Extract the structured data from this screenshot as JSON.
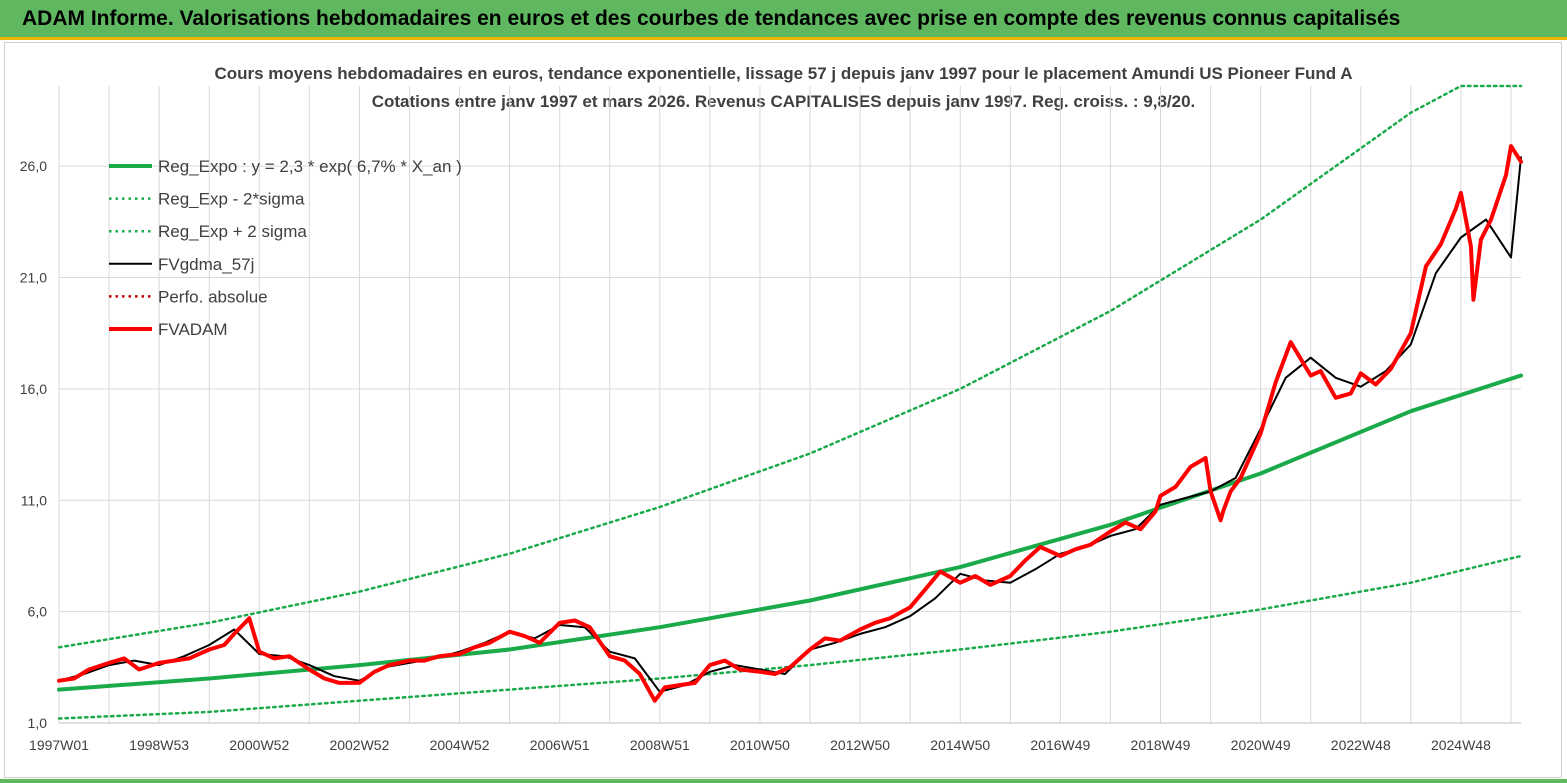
{
  "header": {
    "title": "ADAM Informe. Valorisations hebdomadaires en euros et des courbes de tendances avec prise en compte des revenus connus capitalisés"
  },
  "colors": {
    "header_bg": "#5fb860",
    "header_border": "#e8b400",
    "trend": "#1aaa4a",
    "fvadam": "#ff0000",
    "fvgdma": "#000000",
    "perfo": "#c00000",
    "grid": "#d9d9d9",
    "axis_text": "#404040"
  },
  "chart_data": {
    "type": "line",
    "title": "Cours moyens hebdomadaires en euros, tendance exponentielle, lissage 57 j depuis janv 1997  pour le placement Amundi US Pioneer Fund A",
    "subtitle": "Cotations entre janv 1997 et mars 2026. Revenus  CAPITALISES  depuis janv 1997. Reg. croiss. : 9,8/20.",
    "xlabel": "",
    "ylabel": "",
    "x_range": [
      "1997-01",
      "2026-03"
    ],
    "ylim": [
      1.0,
      29.6
    ],
    "y_ticks": [
      "1,0",
      "6,0",
      "11,0",
      "16,0",
      "21,0",
      "26,0"
    ],
    "y_tick_values": [
      1,
      6,
      11,
      16,
      21,
      26
    ],
    "x_tick_labels": [
      "1997W01",
      "1998W53",
      "2000W52",
      "2002W52",
      "2004W52",
      "2006W51",
      "2008W51",
      "2010W50",
      "2012W50",
      "2014W50",
      "2016W49",
      "2018W49",
      "2020W49",
      "2022W48",
      "2024W48"
    ],
    "x_tick_years": [
      1997.0,
      1999.0,
      2001.0,
      2003.0,
      2005.0,
      2007.0,
      2009.0,
      2011.0,
      2013.0,
      2015.0,
      2017.0,
      2019.0,
      2021.0,
      2023.0,
      2025.0
    ],
    "grid": true,
    "legend_position": "top-left",
    "legend": [
      "Reg_Expo : y = 2,3 * exp( 6,7% *  X_an )",
      "Reg_Exp - 2*sigma",
      "Reg_Exp + 2 sigma",
      "FVgdma_57j",
      "Perfo. absolue",
      "FVADAM"
    ],
    "series": [
      {
        "name": "Reg_Expo : y = 2,3 * exp( 6,7% *  X_an )",
        "style": "solid-thick",
        "color": "#1aaa4a",
        "x": [
          1997.0,
          2000.0,
          2003.0,
          2006.0,
          2009.0,
          2012.0,
          2015.0,
          2018.0,
          2021.0,
          2024.0,
          2026.2
        ],
        "y": [
          2.5,
          3.0,
          3.6,
          4.3,
          5.3,
          6.5,
          8.0,
          9.9,
          12.2,
          15.0,
          16.6
        ]
      },
      {
        "name": "Reg_Exp - 2*sigma",
        "style": "dotted",
        "color": "#1aaa4a",
        "x": [
          1997.0,
          2000.0,
          2003.0,
          2006.0,
          2009.0,
          2012.0,
          2015.0,
          2018.0,
          2021.0,
          2024.0,
          2026.2
        ],
        "y": [
          1.2,
          1.5,
          2.0,
          2.5,
          3.0,
          3.6,
          4.3,
          5.1,
          6.1,
          7.3,
          8.5
        ]
      },
      {
        "name": "Reg_Exp + 2 sigma",
        "style": "dotted",
        "color": "#1aaa4a",
        "x": [
          1997.0,
          2000.0,
          2003.0,
          2006.0,
          2009.0,
          2012.0,
          2015.0,
          2018.0,
          2021.0,
          2024.0,
          2025.0,
          2026.2
        ],
        "y": [
          4.4,
          5.5,
          6.9,
          8.6,
          10.7,
          13.1,
          16.0,
          19.5,
          23.6,
          28.4,
          29.6,
          29.6
        ]
      },
      {
        "name": "FVgdma_57j",
        "style": "solid",
        "color": "#000000",
        "x": [
          1997.0,
          1997.5,
          1998.0,
          1998.5,
          1999.0,
          1999.5,
          2000.0,
          2000.5,
          2001.0,
          2001.5,
          2002.0,
          2002.5,
          2003.0,
          2003.5,
          2004.0,
          2004.5,
          2005.0,
          2005.5,
          2006.0,
          2006.5,
          2007.0,
          2007.5,
          2008.0,
          2008.5,
          2009.0,
          2009.5,
          2010.0,
          2010.5,
          2011.0,
          2011.5,
          2012.0,
          2012.5,
          2013.0,
          2013.5,
          2014.0,
          2014.5,
          2015.0,
          2015.5,
          2016.0,
          2016.5,
          2017.0,
          2017.5,
          2018.0,
          2018.5,
          2019.0,
          2019.5,
          2020.0,
          2020.5,
          2021.0,
          2021.5,
          2022.0,
          2022.5,
          2023.0,
          2023.5,
          2024.0,
          2024.5,
          2025.0,
          2025.5,
          2026.0,
          2026.2
        ],
        "y": [
          2.9,
          3.2,
          3.6,
          3.8,
          3.6,
          4.0,
          4.5,
          5.2,
          4.1,
          4.0,
          3.6,
          3.1,
          2.9,
          3.5,
          3.7,
          3.9,
          4.2,
          4.6,
          5.1,
          4.8,
          5.4,
          5.3,
          4.2,
          3.9,
          2.4,
          2.7,
          3.3,
          3.6,
          3.4,
          3.2,
          4.3,
          4.6,
          5.0,
          5.3,
          5.8,
          6.6,
          7.7,
          7.4,
          7.3,
          7.9,
          8.6,
          8.9,
          9.4,
          9.7,
          10.8,
          11.1,
          11.4,
          12.0,
          14.2,
          16.5,
          17.4,
          16.5,
          16.1,
          16.8,
          18.0,
          21.2,
          22.8,
          23.6,
          21.9,
          26.4
        ]
      },
      {
        "name": "Perfo. absolue",
        "style": "dotted",
        "color": "#c00000",
        "x": [],
        "y": []
      },
      {
        "name": "FVADAM",
        "style": "solid-thick",
        "color": "#ff0000",
        "x": [
          1997.0,
          1997.3,
          1997.6,
          1998.0,
          1998.3,
          1998.6,
          1999.0,
          1999.3,
          1999.6,
          2000.0,
          2000.3,
          2000.5,
          2000.8,
          2001.0,
          2001.3,
          2001.6,
          2002.0,
          2002.3,
          2002.6,
          2003.0,
          2003.3,
          2003.6,
          2004.0,
          2004.3,
          2004.6,
          2005.0,
          2005.3,
          2005.6,
          2006.0,
          2006.3,
          2006.6,
          2007.0,
          2007.3,
          2007.6,
          2008.0,
          2008.3,
          2008.6,
          2008.9,
          2009.1,
          2009.4,
          2009.7,
          2010.0,
          2010.3,
          2010.6,
          2011.0,
          2011.3,
          2011.6,
          2012.0,
          2012.3,
          2012.6,
          2013.0,
          2013.3,
          2013.6,
          2014.0,
          2014.3,
          2014.6,
          2015.0,
          2015.3,
          2015.6,
          2016.0,
          2016.3,
          2016.6,
          2017.0,
          2017.3,
          2017.6,
          2018.0,
          2018.3,
          2018.6,
          2018.9,
          2019.0,
          2019.3,
          2019.6,
          2019.9,
          2020.0,
          2020.2,
          2020.25,
          2020.4,
          2020.6,
          2021.0,
          2021.3,
          2021.6,
          2022.0,
          2022.2,
          2022.5,
          2022.8,
          2023.0,
          2023.3,
          2023.6,
          2024.0,
          2024.3,
          2024.6,
          2024.9,
          2025.0,
          2025.2,
          2025.25,
          2025.4,
          2025.6,
          2025.9,
          2026.0,
          2026.2
        ],
        "y": [
          2.9,
          3.0,
          3.4,
          3.7,
          3.9,
          3.4,
          3.7,
          3.8,
          3.9,
          4.3,
          4.5,
          5.0,
          5.7,
          4.2,
          3.9,
          4.0,
          3.4,
          3.0,
          2.8,
          2.8,
          3.3,
          3.6,
          3.8,
          3.8,
          4.0,
          4.1,
          4.4,
          4.6,
          5.1,
          4.9,
          4.6,
          5.5,
          5.6,
          5.3,
          4.0,
          3.8,
          3.2,
          2.0,
          2.6,
          2.7,
          2.8,
          3.6,
          3.8,
          3.4,
          3.3,
          3.2,
          3.5,
          4.3,
          4.8,
          4.7,
          5.2,
          5.5,
          5.7,
          6.2,
          7.0,
          7.8,
          7.3,
          7.6,
          7.2,
          7.6,
          8.3,
          8.9,
          8.5,
          8.8,
          9.0,
          9.6,
          10.0,
          9.7,
          10.5,
          11.2,
          11.6,
          12.5,
          12.9,
          11.4,
          10.1,
          10.5,
          11.4,
          12.0,
          14.0,
          16.3,
          18.1,
          16.6,
          16.8,
          15.6,
          15.8,
          16.7,
          16.2,
          16.9,
          18.5,
          21.5,
          22.5,
          24.1,
          24.8,
          22.4,
          20.0,
          22.7,
          23.6,
          25.6,
          26.9,
          26.2
        ]
      }
    ]
  }
}
